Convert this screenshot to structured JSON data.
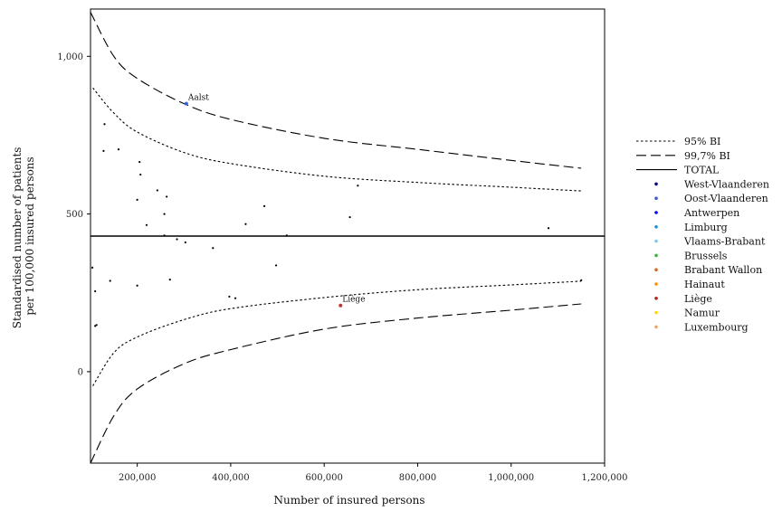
{
  "chart_data": {
    "type": "scatter",
    "title": "",
    "xlabel": "Number of insured persons",
    "ylabel_lines": [
      "Standardised number of patients",
      "per 100,000 insured persons"
    ],
    "xlim": [
      100000,
      1200000
    ],
    "ylim": [
      -290,
      1150
    ],
    "x_ticks": [
      {
        "value": 200000,
        "label": "200,000"
      },
      {
        "value": 400000,
        "label": "400,000"
      },
      {
        "value": 600000,
        "label": "600,000"
      },
      {
        "value": 800000,
        "label": "800,000"
      },
      {
        "value": 1000000,
        "label": "1,000,000"
      },
      {
        "value": 1200000,
        "label": "1,200,000"
      }
    ],
    "y_ticks": [
      {
        "value": 0,
        "label": "0"
      },
      {
        "value": 500,
        "label": "500"
      },
      {
        "value": 1000,
        "label": "1,000"
      }
    ],
    "grid": false,
    "legend_position": "right",
    "total": 430,
    "series": [
      {
        "name": "95% BI",
        "style": "dotted",
        "color": "#000000",
        "upper": [
          [
            105000,
            900
          ],
          [
            150000,
            820
          ],
          [
            200000,
            760
          ],
          [
            300000,
            695
          ],
          [
            400000,
            660
          ],
          [
            600000,
            620
          ],
          [
            800000,
            600
          ],
          [
            1000000,
            585
          ],
          [
            1150000,
            573
          ]
        ],
        "lower": [
          [
            105000,
            -45
          ],
          [
            150000,
            60
          ],
          [
            200000,
            110
          ],
          [
            300000,
            165
          ],
          [
            400000,
            200
          ],
          [
            600000,
            235
          ],
          [
            800000,
            260
          ],
          [
            1000000,
            275
          ],
          [
            1150000,
            287
          ]
        ]
      },
      {
        "name": "99,7% BI",
        "style": "dashed",
        "color": "#000000",
        "upper": [
          [
            100000,
            1140
          ],
          [
            150000,
            1000
          ],
          [
            200000,
            930
          ],
          [
            300000,
            850
          ],
          [
            400000,
            800
          ],
          [
            600000,
            740
          ],
          [
            800000,
            705
          ],
          [
            1000000,
            670
          ],
          [
            1150000,
            645
          ]
        ],
        "lower": [
          [
            100000,
            -290
          ],
          [
            150000,
            -140
          ],
          [
            200000,
            -55
          ],
          [
            300000,
            25
          ],
          [
            400000,
            70
          ],
          [
            600000,
            135
          ],
          [
            800000,
            170
          ],
          [
            1000000,
            195
          ],
          [
            1150000,
            215
          ]
        ]
      },
      {
        "name": "TOTAL",
        "style": "solid",
        "color": "#000000"
      }
    ],
    "regions": [
      {
        "name": "West-Vlaanderen",
        "color": "#00007f"
      },
      {
        "name": "Oost-Vlaanderen",
        "color": "#3c5fcf"
      },
      {
        "name": "Antwerpen",
        "color": "#0000ff"
      },
      {
        "name": "Limburg",
        "color": "#1e90d8"
      },
      {
        "name": "Vlaams-Brabant",
        "color": "#7cc8ee"
      },
      {
        "name": "Brussels",
        "color": "#3cb043"
      },
      {
        "name": "Brabant Wallon",
        "color": "#d2691e"
      },
      {
        "name": "Hainaut",
        "color": "#ff8c00"
      },
      {
        "name": "Liège",
        "color": "#b22222"
      },
      {
        "name": "Namur",
        "color": "#ffd700"
      },
      {
        "name": "Luxembourg",
        "color": "#f4a460"
      }
    ],
    "points": [
      {
        "x": 305000,
        "y": 850,
        "color": "#3c5fcf",
        "label": "Aalst"
      },
      {
        "x": 635000,
        "y": 210,
        "color": "#c0392b",
        "label": "Liège"
      },
      {
        "x": 130000,
        "y": 785,
        "color": "#000000"
      },
      {
        "x": 128000,
        "y": 700,
        "color": "#000000"
      },
      {
        "x": 160000,
        "y": 705,
        "color": "#000000"
      },
      {
        "x": 205000,
        "y": 665,
        "color": "#000000"
      },
      {
        "x": 207000,
        "y": 625,
        "color": "#000000"
      },
      {
        "x": 243000,
        "y": 575,
        "color": "#000000"
      },
      {
        "x": 263000,
        "y": 555,
        "color": "#000000"
      },
      {
        "x": 200000,
        "y": 545,
        "color": "#000000"
      },
      {
        "x": 258000,
        "y": 500,
        "color": "#000000"
      },
      {
        "x": 220000,
        "y": 465,
        "color": "#000000"
      },
      {
        "x": 472000,
        "y": 525,
        "color": "#000000"
      },
      {
        "x": 432000,
        "y": 468,
        "color": "#000000"
      },
      {
        "x": 672000,
        "y": 590,
        "color": "#000000"
      },
      {
        "x": 655000,
        "y": 490,
        "color": "#000000"
      },
      {
        "x": 1080000,
        "y": 455,
        "color": "#000000"
      },
      {
        "x": 258000,
        "y": 432,
        "color": "#000000"
      },
      {
        "x": 520000,
        "y": 432,
        "color": "#000000"
      },
      {
        "x": 285000,
        "y": 420,
        "color": "#000000"
      },
      {
        "x": 303000,
        "y": 410,
        "color": "#000000"
      },
      {
        "x": 362000,
        "y": 392,
        "color": "#000000"
      },
      {
        "x": 104000,
        "y": 330,
        "color": "#000000"
      },
      {
        "x": 497000,
        "y": 337,
        "color": "#000000"
      },
      {
        "x": 142000,
        "y": 288,
        "color": "#000000"
      },
      {
        "x": 270000,
        "y": 292,
        "color": "#000000"
      },
      {
        "x": 200000,
        "y": 273,
        "color": "#000000"
      },
      {
        "x": 110000,
        "y": 255,
        "color": "#000000"
      },
      {
        "x": 397000,
        "y": 238,
        "color": "#000000"
      },
      {
        "x": 410000,
        "y": 233,
        "color": "#000000"
      },
      {
        "x": 110000,
        "y": 145,
        "color": "#000000"
      },
      {
        "x": 113000,
        "y": 148,
        "color": "#000000"
      },
      {
        "x": 1150000,
        "y": 290,
        "color": "#000000"
      }
    ]
  }
}
